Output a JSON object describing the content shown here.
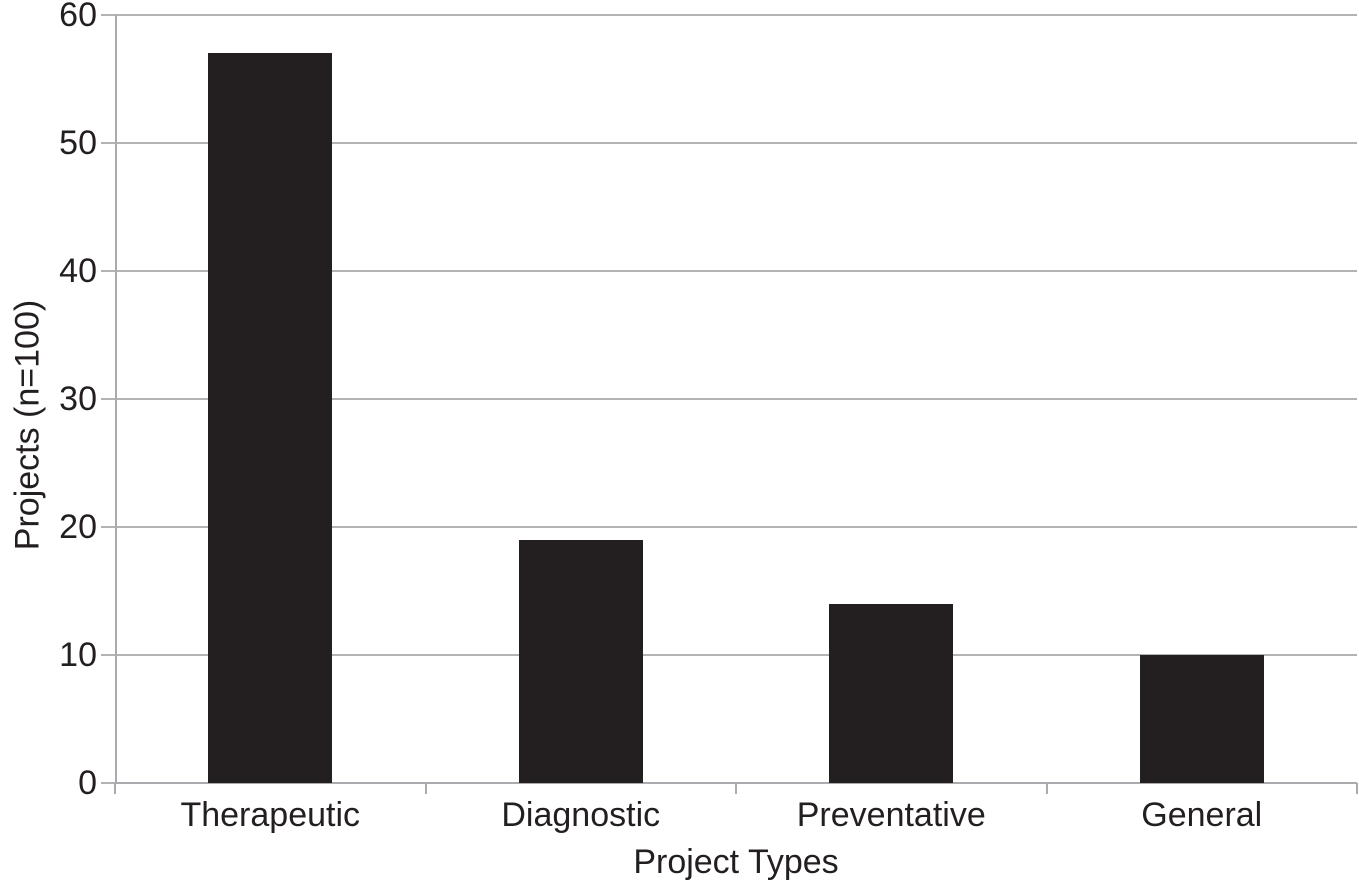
{
  "chart_data": {
    "type": "bar",
    "title": "",
    "categories": [
      "Therapeutic",
      "Diagnostic",
      "Preventative",
      "General"
    ],
    "values": [
      57,
      19,
      14,
      10
    ],
    "xlabel": "Project Types",
    "ylabel": "Projects (n=100)",
    "ylim": [
      0,
      60
    ],
    "yticks": [
      0,
      10,
      20,
      30,
      40,
      50,
      60
    ],
    "grid": true,
    "legend": false,
    "bar_color": "#231f20",
    "grid_color": "#b3b3b3",
    "axis_color": "#a9abae",
    "text_color": "#231f20",
    "background": "#ffffff"
  }
}
